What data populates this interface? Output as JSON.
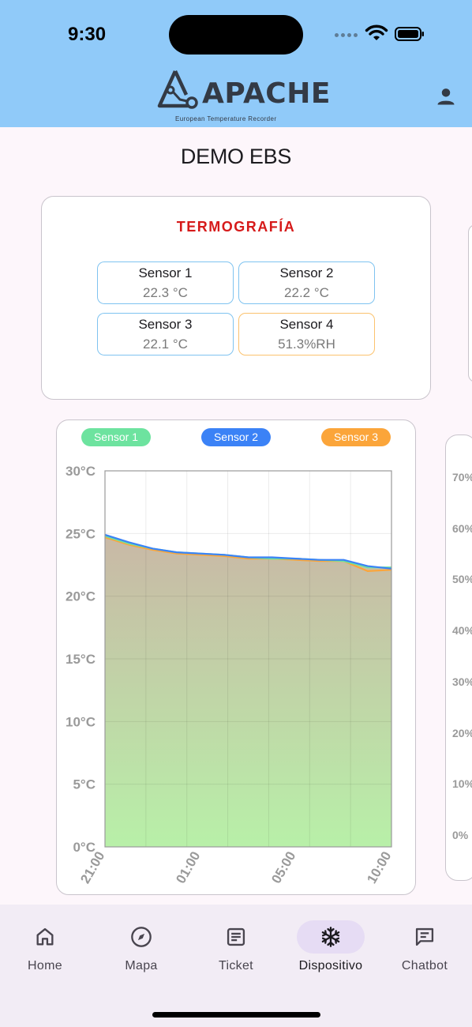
{
  "status_bar": {
    "time": "9:30"
  },
  "header": {
    "logo_text": "APACHE",
    "logo_subtitle": "European Temperature Recorder"
  },
  "page": {
    "title": "DEMO EBS"
  },
  "sensor_card": {
    "title": "TERMOGRAFÍA",
    "sensors": [
      {
        "name": "Sensor 1",
        "value": "22.3 °C"
      },
      {
        "name": "Sensor 2",
        "value": "22.2 °C"
      },
      {
        "name": "Sensor 3",
        "value": "22.1 °C"
      },
      {
        "name": "Sensor 4",
        "value": "51.3%RH"
      }
    ]
  },
  "colors": {
    "header_bg": "#90caf9",
    "accent_red": "#d61a1a",
    "sensor1": "#6de39f",
    "sensor2": "#3b82f6",
    "sensor3": "#fba53a",
    "nav_active_pill": "#e6dcf4"
  },
  "chart_data": [
    {
      "type": "area",
      "legend_placement": "top",
      "grid": true,
      "x_tick_labels": [
        "21:00",
        "01:00",
        "05:00",
        "10:00"
      ],
      "y_tick_labels": [
        "0°C",
        "5°C",
        "10°C",
        "15°C",
        "20°C",
        "25°C",
        "30°C"
      ],
      "ylim": [
        0,
        30
      ],
      "series": [
        {
          "name": "Sensor 1",
          "color": "#6de39f",
          "values": [
            24.8,
            24.2,
            23.8,
            23.5,
            23.4,
            23.3,
            23.1,
            23.0,
            23.0,
            22.9,
            22.8,
            22.3,
            22.3
          ]
        },
        {
          "name": "Sensor 2",
          "color": "#3b82f6",
          "values": [
            24.9,
            24.3,
            23.8,
            23.5,
            23.4,
            23.3,
            23.1,
            23.1,
            23.0,
            22.9,
            22.9,
            22.4,
            22.2
          ]
        },
        {
          "name": "Sensor 3",
          "color": "#fba53a",
          "values": [
            24.7,
            24.1,
            23.7,
            23.4,
            23.3,
            23.2,
            23.0,
            23.0,
            22.9,
            22.8,
            22.8,
            22.0,
            22.1
          ]
        }
      ]
    },
    {
      "type": "area",
      "partially_visible": true,
      "y_tick_labels": [
        "0%",
        "10%",
        "20%",
        "30%",
        "40%",
        "50%",
        "60%",
        "70%"
      ]
    }
  ],
  "bottom_nav": {
    "items": [
      {
        "label": "Home",
        "icon": "home-icon",
        "active": false
      },
      {
        "label": "Mapa",
        "icon": "compass-icon",
        "active": false
      },
      {
        "label": "Ticket",
        "icon": "ticket-icon",
        "active": false
      },
      {
        "label": "Dispositivo",
        "icon": "snowflake-icon",
        "active": true
      },
      {
        "label": "Chatbot",
        "icon": "chat-icon",
        "active": false
      }
    ]
  }
}
